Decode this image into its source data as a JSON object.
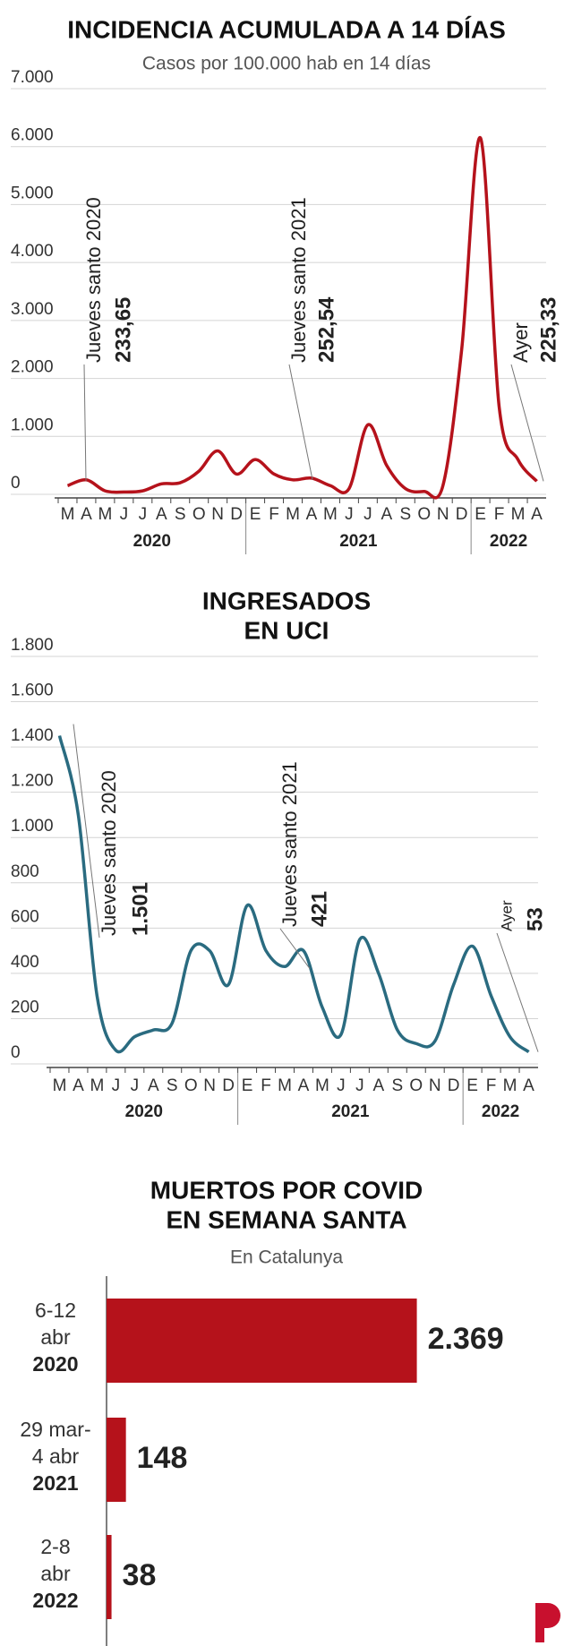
{
  "chart_data": [
    {
      "type": "line",
      "title": "INCIDENCIA ACUMULADA A 14 DÍAS",
      "subtitle": "Casos por 100.000 hab en 14 días",
      "color": "#b5121b",
      "ylim": [
        0,
        7000
      ],
      "yticks": [
        0,
        {
          "value": 1000,
          "label": "1.000"
        },
        {
          "value": 2000,
          "label": "2.000"
        },
        {
          "value": 3000,
          "label": "3.000"
        },
        {
          "value": 4000,
          "label": "4.000"
        },
        {
          "value": 5000,
          "label": "5.000"
        },
        {
          "value": 6000,
          "label": "6.000"
        },
        {
          "value": 7000,
          "label": "7.000"
        }
      ],
      "grid": true,
      "years": [
        {
          "label": "2020",
          "categories": [
            "M",
            "A",
            "M",
            "J",
            "J",
            "A",
            "S",
            "O",
            "N",
            "D"
          ],
          "values": [
            150,
            250,
            60,
            40,
            60,
            180,
            200,
            400,
            750,
            350
          ]
        },
        {
          "label": "2021",
          "categories": [
            "E",
            "F",
            "M",
            "A",
            "M",
            "J",
            "J",
            "A",
            "S",
            "O",
            "N",
            "D"
          ],
          "values": [
            600,
            350,
            250,
            280,
            150,
            100,
            1200,
            500,
            100,
            50,
            150,
            2500
          ]
        },
        {
          "label": "2022",
          "categories": [
            "E",
            "F",
            "M",
            "A"
          ],
          "values": [
            6150,
            1500,
            600,
            225.33
          ]
        }
      ],
      "annotations": [
        {
          "text": "Jueves santo 2020",
          "value": 233.65,
          "value_label": "233,65"
        },
        {
          "text": "Jueves santo 2021",
          "value": 252.54,
          "value_label": "252,54"
        },
        {
          "text": "Ayer",
          "value": 225.33,
          "value_label": "225,33"
        }
      ]
    },
    {
      "type": "line",
      "title_lines": [
        "INGRESADOS",
        "EN UCI"
      ],
      "color": "#2a6b80",
      "ylim": [
        0,
        1800
      ],
      "yticks": [
        0,
        200,
        400,
        600,
        800,
        {
          "value": 1000,
          "label": "1.000"
        },
        {
          "value": 1200,
          "label": "1.200"
        },
        {
          "value": 1400,
          "label": "1.400"
        },
        {
          "value": 1600,
          "label": "1.600"
        },
        {
          "value": 1800,
          "label": "1.800"
        }
      ],
      "grid": true,
      "years": [
        {
          "label": "2020",
          "categories": [
            "M",
            "A",
            "M",
            "J",
            "J",
            "A",
            "S",
            "O",
            "N",
            "D"
          ],
          "values": [
            1450,
            1100,
            300,
            60,
            120,
            150,
            180,
            500,
            500,
            350
          ]
        },
        {
          "label": "2021",
          "categories": [
            "E",
            "F",
            "M",
            "A",
            "M",
            "J",
            "J",
            "A",
            "S",
            "O",
            "N",
            "D"
          ],
          "values": [
            700,
            500,
            430,
            500,
            250,
            130,
            550,
            400,
            150,
            90,
            100,
            350
          ]
        },
        {
          "label": "2022",
          "categories": [
            "E",
            "F",
            "M",
            "A"
          ],
          "values": [
            520,
            300,
            120,
            53
          ]
        }
      ],
      "annotations": [
        {
          "text": "Jueves santo 2020",
          "value": 1501,
          "value_label": "1.501"
        },
        {
          "text": "Jueves santo 2021",
          "value": 421,
          "value_label": "421"
        },
        {
          "text": "Ayer",
          "value": 53,
          "value_label": "53"
        }
      ]
    },
    {
      "type": "bar",
      "orientation": "horizontal",
      "title_lines": [
        "MUERTOS POR COVID",
        "EN SEMANA SANTA"
      ],
      "subtitle": "En Catalunya",
      "color": "#b5121b",
      "xlim": [
        0,
        2700
      ],
      "categories": [
        {
          "lines": [
            "6-12",
            "abr"
          ],
          "year": "2020"
        },
        {
          "lines": [
            "29 mar-",
            "4 abr"
          ],
          "year": "2021"
        },
        {
          "lines": [
            "2-8",
            "abr"
          ],
          "year": "2022"
        }
      ],
      "values": [
        2369,
        148,
        38
      ],
      "value_labels": [
        "2.369",
        "148",
        "38"
      ]
    }
  ]
}
